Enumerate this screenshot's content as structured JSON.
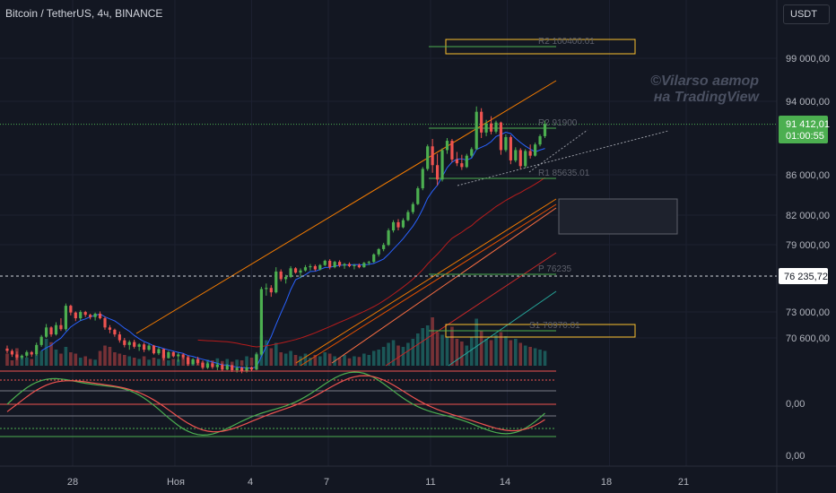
{
  "header": {
    "title": "Bitcoin / TetherUS, 4ч, BINANCE",
    "currency": "USDT"
  },
  "watermark": {
    "line1": "©Vilarso автор",
    "line2": "на TradingView"
  },
  "chart_data": {
    "type": "candlestick",
    "symbol": "BTCUSDT",
    "y_ticks": [
      "99 000,00",
      "94 000,00",
      "86 000,00",
      "82 000,00",
      "79 000,00",
      "73 000,00",
      "70 600,00"
    ],
    "x_ticks": [
      "28",
      "Ноя",
      "4",
      "7",
      "11",
      "14",
      "18",
      "21"
    ],
    "oscillator_ticks": [
      "0,00",
      "0,00"
    ],
    "last_price": "91 412,01",
    "countdown": "01:00:55",
    "crosshair_price": "76 235,72",
    "levels": [
      {
        "label": "R2 100400.01",
        "value": 100400.01
      },
      {
        "label": "R2 91900",
        "value": 91900
      },
      {
        "label": "R1 85635.01",
        "value": 85635.01
      },
      {
        "label": "P 76235",
        "value": 76235
      },
      {
        "label": "S1 70970.01",
        "value": 70970.01
      }
    ],
    "colors": {
      "up": "#26a69a",
      "up_bright": "#4caf50",
      "down": "#ef5350",
      "ma": "#2962ff",
      "channel": "#f57c00",
      "level": "#4caf50",
      "zone": "#fbc02d",
      "last": "#4caf50"
    },
    "candles": [
      [
        69700,
        69950,
        69300,
        69500
      ],
      [
        69500,
        69650,
        69000,
        69200
      ],
      [
        69200,
        69450,
        68750,
        68950
      ],
      [
        68950,
        69200,
        68800,
        69100
      ],
      [
        69100,
        69550,
        68950,
        69400
      ],
      [
        69400,
        69500,
        69000,
        69200
      ],
      [
        69200,
        70200,
        69100,
        70000
      ],
      [
        70000,
        70850,
        69850,
        70700
      ],
      [
        70700,
        71800,
        70600,
        71500
      ],
      [
        71500,
        71600,
        70700,
        70900
      ],
      [
        70900,
        71950,
        70800,
        71700
      ],
      [
        71700,
        72300,
        71200,
        71350
      ],
      [
        71350,
        73600,
        71200,
        73400
      ],
      [
        73400,
        73500,
        72550,
        72800
      ],
      [
        72800,
        72900,
        72050,
        72300
      ],
      [
        72300,
        73000,
        72100,
        72850
      ],
      [
        72850,
        72950,
        72400,
        72600
      ],
      [
        72600,
        72700,
        72200,
        72400
      ],
      [
        72400,
        72800,
        72100,
        72700
      ],
      [
        72700,
        72900,
        72200,
        72300
      ],
      [
        72300,
        72450,
        71300,
        71500
      ],
      [
        71500,
        71700,
        71000,
        71300
      ],
      [
        71300,
        71400,
        70700,
        70900
      ],
      [
        70900,
        71150,
        70200,
        70400
      ],
      [
        70400,
        70600,
        69800,
        70000
      ],
      [
        70000,
        70400,
        69600,
        70250
      ],
      [
        70250,
        70450,
        69700,
        69850
      ],
      [
        69850,
        70150,
        69500,
        70050
      ],
      [
        70050,
        70200,
        69400,
        69600
      ],
      [
        69600,
        70100,
        69500,
        69950
      ],
      [
        69950,
        70000,
        69200,
        69300
      ],
      [
        69300,
        69800,
        69150,
        69650
      ],
      [
        69650,
        69700,
        68700,
        68900
      ],
      [
        68900,
        69500,
        68850,
        69400
      ],
      [
        69400,
        69450,
        68950,
        69050
      ],
      [
        69050,
        69350,
        68600,
        69200
      ],
      [
        69200,
        69300,
        68800,
        68950
      ],
      [
        68950,
        69100,
        68250,
        68400
      ],
      [
        68400,
        68900,
        68300,
        68800
      ],
      [
        68800,
        69000,
        68350,
        68500
      ],
      [
        68500,
        68700,
        67950,
        68100
      ],
      [
        68100,
        68600,
        68000,
        68450
      ],
      [
        68450,
        68600,
        68000,
        68150
      ],
      [
        68150,
        68500,
        67900,
        68350
      ],
      [
        68350,
        68450,
        67800,
        67950
      ],
      [
        67950,
        68400,
        67900,
        68300
      ],
      [
        68300,
        68350,
        67750,
        67900
      ],
      [
        67900,
        68250,
        67700,
        68100
      ],
      [
        68100,
        68200,
        67650,
        67800
      ],
      [
        67800,
        68300,
        67700,
        68150
      ],
      [
        68150,
        68200,
        67850,
        67950
      ],
      [
        67950,
        69400,
        67900,
        69200
      ],
      [
        69200,
        75100,
        69100,
        74900
      ],
      [
        74900,
        75400,
        74300,
        75000
      ],
      [
        75000,
        75250,
        74200,
        74600
      ],
      [
        74600,
        76900,
        74500,
        76500
      ],
      [
        76500,
        76700,
        75600,
        75800
      ],
      [
        75800,
        76200,
        75400,
        76000
      ],
      [
        76000,
        77000,
        75900,
        76800
      ],
      [
        76800,
        76900,
        76300,
        76400
      ],
      [
        76400,
        76800,
        75900,
        76600
      ],
      [
        76600,
        77100,
        76500,
        76900
      ],
      [
        76900,
        77200,
        76600,
        77000
      ],
      [
        77000,
        77150,
        76550,
        76700
      ],
      [
        76700,
        77200,
        76600,
        77100
      ],
      [
        77100,
        77600,
        77000,
        77500
      ],
      [
        77500,
        77650,
        76700,
        76900
      ],
      [
        76900,
        77500,
        76800,
        77400
      ],
      [
        77400,
        77550,
        76900,
        77050
      ],
      [
        77050,
        77300,
        76750,
        77200
      ],
      [
        77200,
        77350,
        76900,
        77000
      ],
      [
        77000,
        77200,
        76700,
        77100
      ],
      [
        77100,
        77250,
        76800,
        76900
      ],
      [
        76900,
        77400,
        76850,
        77300
      ],
      [
        77300,
        77500,
        77100,
        77400
      ],
      [
        77400,
        78200,
        77300,
        78100
      ],
      [
        78100,
        78700,
        77900,
        78600
      ],
      [
        78600,
        79200,
        78400,
        79000
      ],
      [
        79000,
        80600,
        78900,
        80400
      ],
      [
        80400,
        81400,
        80200,
        81200
      ],
      [
        81200,
        81500,
        80400,
        80700
      ],
      [
        80700,
        81600,
        80600,
        81400
      ],
      [
        81400,
        82400,
        81300,
        82200
      ],
      [
        82200,
        83200,
        82000,
        83000
      ],
      [
        83000,
        84800,
        82900,
        84600
      ],
      [
        84600,
        86800,
        84400,
        86600
      ],
      [
        86600,
        89200,
        86400,
        89000
      ],
      [
        89000,
        89800,
        86200,
        87000
      ],
      [
        87000,
        88200,
        84900,
        85500
      ],
      [
        85500,
        88800,
        85300,
        88600
      ],
      [
        88600,
        89900,
        88200,
        89600
      ],
      [
        89600,
        89800,
        87300,
        87600
      ],
      [
        87600,
        88400,
        86900,
        87200
      ],
      [
        87200,
        88100,
        86500,
        86800
      ],
      [
        86800,
        88200,
        86700,
        88000
      ],
      [
        88000,
        88900,
        87800,
        88700
      ],
      [
        88700,
        93400,
        88600,
        92800
      ],
      [
        92800,
        93200,
        89900,
        90500
      ],
      [
        90500,
        91900,
        90100,
        91500
      ],
      [
        91500,
        92300,
        90300,
        90600
      ],
      [
        90600,
        91800,
        90400,
        91600
      ],
      [
        91600,
        91700,
        88100,
        88600
      ],
      [
        88600,
        90300,
        88400,
        90000
      ],
      [
        90000,
        90200,
        87100,
        87500
      ],
      [
        87500,
        88900,
        87300,
        88600
      ],
      [
        88600,
        88800,
        86600,
        86900
      ],
      [
        86900,
        88700,
        86700,
        88500
      ],
      [
        88500,
        89200,
        87700,
        88000
      ],
      [
        88000,
        89400,
        87900,
        89200
      ],
      [
        89200,
        90300,
        89000,
        90100
      ],
      [
        90100,
        91800,
        89900,
        91412
      ]
    ],
    "volumes": [
      18,
      8,
      26,
      14,
      12,
      10,
      16,
      22,
      40,
      35,
      24,
      18,
      28,
      20,
      18,
      12,
      14,
      10,
      9,
      22,
      30,
      28,
      20,
      18,
      16,
      14,
      12,
      10,
      14,
      9,
      12,
      10,
      16,
      8,
      10,
      9,
      12,
      14,
      8,
      10,
      6,
      9,
      8,
      11,
      7,
      10,
      6,
      9,
      8,
      14,
      12,
      18,
      45,
      38,
      26,
      34,
      20,
      18,
      22,
      16,
      14,
      18,
      12,
      16,
      14,
      20,
      18,
      14,
      12,
      16,
      11,
      14,
      13,
      18,
      16,
      22,
      24,
      28,
      34,
      38,
      30,
      28,
      34,
      40,
      48,
      56,
      60,
      72,
      50,
      46,
      42,
      58,
      40,
      36,
      30,
      42,
      70,
      52,
      40,
      38,
      46,
      50,
      44,
      38,
      40,
      34,
      30,
      28,
      26,
      24,
      22
    ]
  }
}
